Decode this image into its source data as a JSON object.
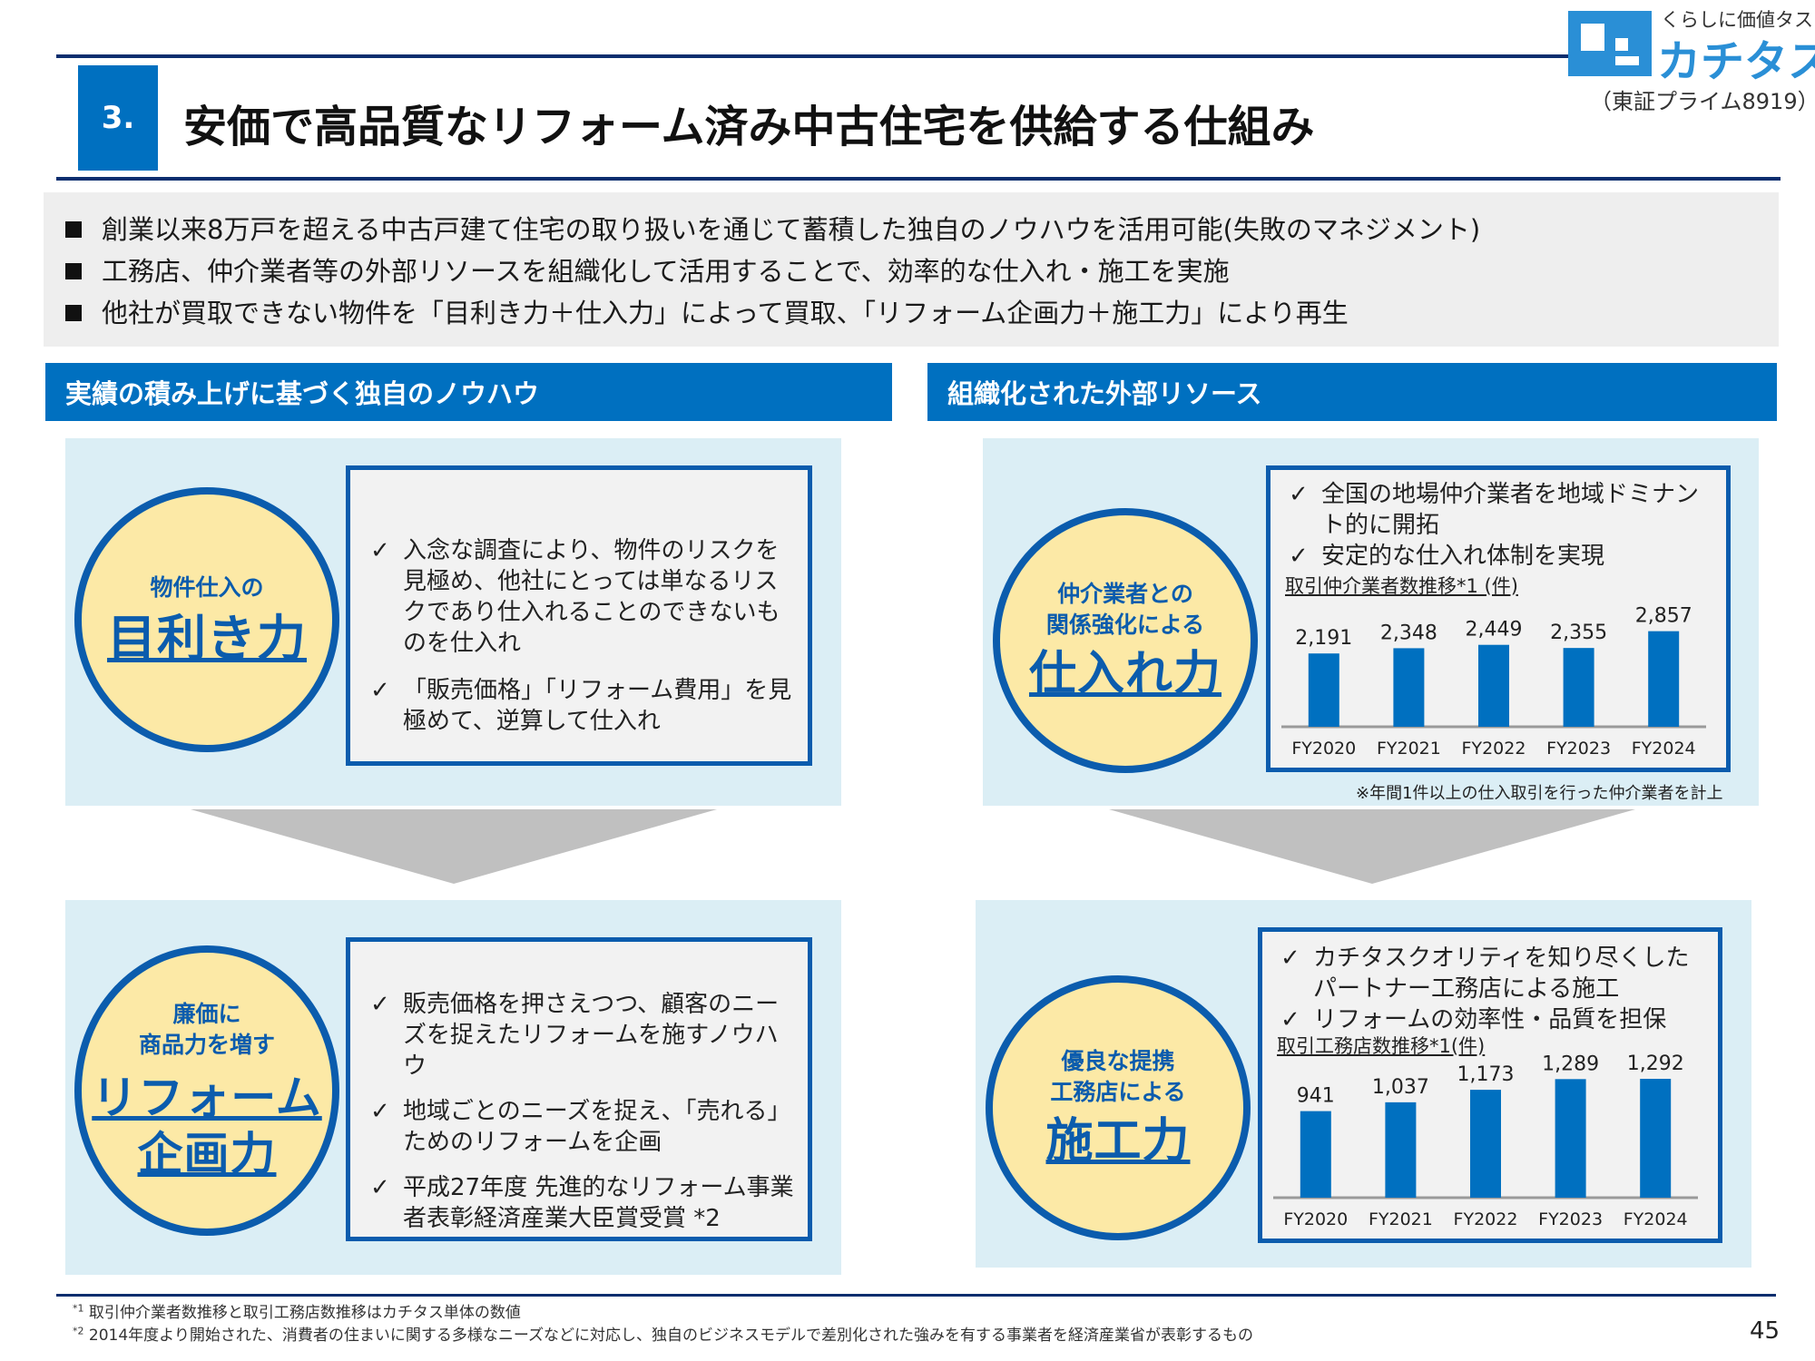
{
  "header": {
    "section_number": "3.",
    "title": "安価で高品質なリフォーム済み中古住宅を供給する仕組み"
  },
  "logo": {
    "tagline": "くらしに価値タス",
    "name": "カチタス",
    "exchange": "（東証プライム8919）",
    "brand_color": "#2a8fd6"
  },
  "summary": {
    "bullets": [
      "創業以来8万戸を超える中古戸建て住宅の取り扱いを通じて蓄積した独自のノウハウを活用可能(失敗のマネジメント)",
      "工務店、仲介業者等の外部リソースを組織化して活用することで、効率的な仕入れ・施工を実施",
      "他社が買取できない物件を「目利き力＋仕入力」によって買取、「リフォーム企画力＋施工力」により再生"
    ]
  },
  "left": {
    "header": "実績の積み上げに基づく独自のノウハウ",
    "top": {
      "circle_small": "物件仕入の",
      "circle_big": "目利き力",
      "points": [
        "入念な調査により、物件のリスクを見極め、他社にとっては単なるリスクであり仕入れることのできないものを仕入れ",
        "「販売価格」「リフォーム費用」を見極めて、逆算して仕入れ"
      ]
    },
    "bottom": {
      "circle_small_1": "廉価に",
      "circle_small_2": "商品力を増す",
      "circle_big_1": "リフォーム",
      "circle_big_2": "企画力",
      "points": [
        "販売価格を押さえつつ、顧客のニーズを捉えたリフォームを施すノウハウ",
        "地域ごとのニーズを捉え、「売れる」ためのリフォームを企画",
        "平成27年度 先進的なリフォーム事業者表彰経済産業大臣賞受賞 *2"
      ]
    }
  },
  "right": {
    "header": "組織化された外部リソース",
    "top": {
      "circle_small_1": "仲介業者との",
      "circle_small_2": "関係強化による",
      "circle_big": "仕入れ力",
      "points": [
        "全国の地場仲介業者を地域ドミナント的に開拓",
        "安定的な仕入れ体制を実現"
      ],
      "note": "※年間1件以上の仕入取引を行った仲介業者を計上"
    },
    "bottom": {
      "circle_small_1": "優良な提携",
      "circle_small_2": "工務店による",
      "circle_big": "施工力",
      "points": [
        "カチタスクオリティを知り尽くしたパートナー工務店による施工",
        "リフォームの効率性・品質を担保"
      ]
    }
  },
  "chart_data": [
    {
      "type": "bar",
      "title": "取引仲介業者数推移*1 (件)",
      "categories": [
        "FY2020",
        "FY2021",
        "FY2022",
        "FY2023",
        "FY2024"
      ],
      "values": [
        2191,
        2348,
        2449,
        2355,
        2857
      ],
      "value_labels": [
        "2,191",
        "2,348",
        "2,449",
        "2,355",
        "2,857"
      ],
      "ylim": [
        0,
        3200
      ]
    },
    {
      "type": "bar",
      "title": "取引工務店数推移*1(件)",
      "categories": [
        "FY2020",
        "FY2021",
        "FY2022",
        "FY2023",
        "FY2024"
      ],
      "values": [
        941,
        1037,
        1173,
        1289,
        1292
      ],
      "value_labels": [
        "941",
        "1,037",
        "1,173",
        "1,289",
        "1,292"
      ],
      "ylim": [
        0,
        1450
      ]
    }
  ],
  "footer": {
    "note1_mark": "*1",
    "note1": "取引仲介業者数推移と取引工務店数推移はカチタス単体の数値",
    "note2_mark": "*2",
    "note2": "2014年度より開始された、消費者の住まいに関する多様なニーズなどに対応し、独自のビジネスモデルで差別化された強みを有する事業者を経済産業省が表彰するもの",
    "page_number": "45"
  },
  "colors": {
    "accent": "#0070c0",
    "navy": "#0b2e6e",
    "panel": "#dbeef5",
    "circle_fill": "#fce9a6"
  }
}
